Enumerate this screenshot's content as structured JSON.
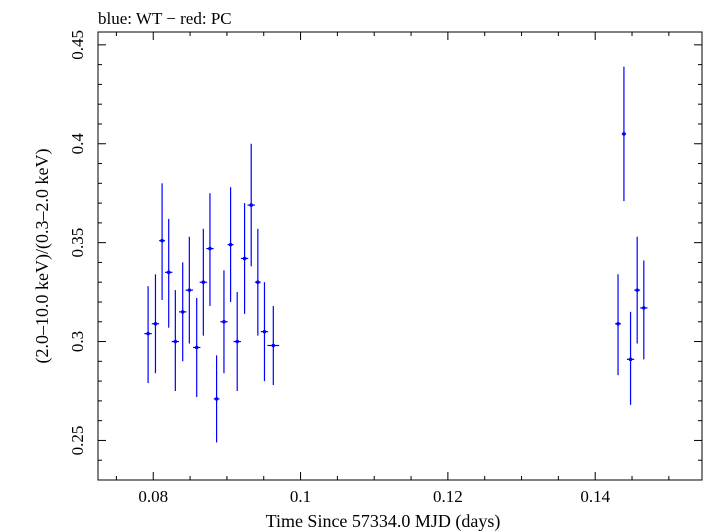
{
  "chart_data": {
    "type": "scatter",
    "title": "blue: WT − red: PC",
    "xlabel": "Time Since 57334.0 MJD (days)",
    "ylabel": "(2.0–10.0 keV)/(0.3–2.0 keV)",
    "xlim": [
      0.0725,
      0.1545
    ],
    "ylim": [
      0.23,
      0.4565
    ],
    "x_ticks": [
      0.08,
      0.1,
      0.12,
      0.14
    ],
    "x_tick_labels": [
      "0.08",
      "0.1",
      "0.12",
      "0.14"
    ],
    "y_ticks": [
      0.25,
      0.3,
      0.35,
      0.4,
      0.45
    ],
    "y_tick_labels": [
      "0.25",
      "0.3",
      "0.35",
      "0.4",
      "0.45"
    ],
    "grid": false,
    "series": [
      {
        "color": "#0000ff",
        "points": [
          {
            "x": 0.0793,
            "xerr": 0.0005,
            "y": 0.304,
            "ylo": 0.279,
            "yhi": 0.328
          },
          {
            "x": 0.0803,
            "xerr": 0.0005,
            "y": 0.309,
            "ylo": 0.284,
            "yhi": 0.334
          },
          {
            "x": 0.0812,
            "xerr": 0.0004,
            "y": 0.351,
            "ylo": 0.321,
            "yhi": 0.38
          },
          {
            "x": 0.0821,
            "xerr": 0.0005,
            "y": 0.335,
            "ylo": 0.307,
            "yhi": 0.362
          },
          {
            "x": 0.083,
            "xerr": 0.0005,
            "y": 0.3,
            "ylo": 0.275,
            "yhi": 0.326
          },
          {
            "x": 0.084,
            "xerr": 0.0005,
            "y": 0.315,
            "ylo": 0.29,
            "yhi": 0.34
          },
          {
            "x": 0.0849,
            "xerr": 0.0005,
            "y": 0.326,
            "ylo": 0.299,
            "yhi": 0.353
          },
          {
            "x": 0.0859,
            "xerr": 0.0005,
            "y": 0.297,
            "ylo": 0.272,
            "yhi": 0.322
          },
          {
            "x": 0.0868,
            "xerr": 0.0005,
            "y": 0.33,
            "ylo": 0.303,
            "yhi": 0.357
          },
          {
            "x": 0.0877,
            "xerr": 0.0005,
            "y": 0.347,
            "ylo": 0.318,
            "yhi": 0.375
          },
          {
            "x": 0.0886,
            "xerr": 0.0004,
            "y": 0.271,
            "ylo": 0.249,
            "yhi": 0.293
          },
          {
            "x": 0.0896,
            "xerr": 0.0005,
            "y": 0.31,
            "ylo": 0.284,
            "yhi": 0.336
          },
          {
            "x": 0.0905,
            "xerr": 0.0004,
            "y": 0.349,
            "ylo": 0.32,
            "yhi": 0.378
          },
          {
            "x": 0.0914,
            "xerr": 0.0005,
            "y": 0.3,
            "ylo": 0.275,
            "yhi": 0.325
          },
          {
            "x": 0.0924,
            "xerr": 0.0005,
            "y": 0.342,
            "ylo": 0.314,
            "yhi": 0.37
          },
          {
            "x": 0.0933,
            "xerr": 0.0005,
            "y": 0.369,
            "ylo": 0.338,
            "yhi": 0.4
          },
          {
            "x": 0.0942,
            "xerr": 0.0004,
            "y": 0.33,
            "ylo": 0.303,
            "yhi": 0.357
          },
          {
            "x": 0.0951,
            "xerr": 0.0005,
            "y": 0.305,
            "ylo": 0.28,
            "yhi": 0.33
          },
          {
            "x": 0.0963,
            "xerr": 0.0008,
            "y": 0.298,
            "ylo": 0.278,
            "yhi": 0.318
          },
          {
            "x": 0.1431,
            "xerr": 0.0004,
            "y": 0.309,
            "ylo": 0.283,
            "yhi": 0.334
          },
          {
            "x": 0.1439,
            "xerr": 0.0003,
            "y": 0.405,
            "ylo": 0.371,
            "yhi": 0.439
          },
          {
            "x": 0.1448,
            "xerr": 0.0005,
            "y": 0.291,
            "ylo": 0.268,
            "yhi": 0.315
          },
          {
            "x": 0.1457,
            "xerr": 0.0004,
            "y": 0.326,
            "ylo": 0.299,
            "yhi": 0.353
          },
          {
            "x": 0.1466,
            "xerr": 0.0005,
            "y": 0.317,
            "ylo": 0.291,
            "yhi": 0.341
          }
        ]
      }
    ]
  }
}
